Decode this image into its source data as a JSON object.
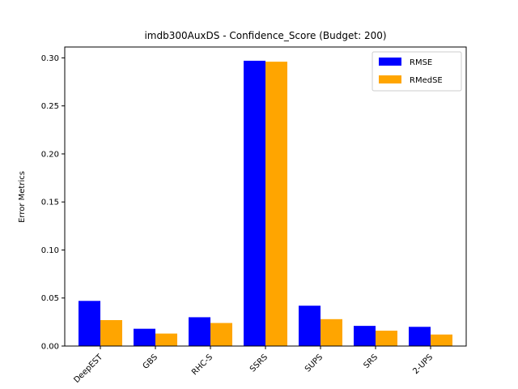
{
  "chart_data": {
    "type": "bar",
    "title": "imdb300AuxDS - Confidence_Score (Budget: 200)",
    "xlabel": "",
    "ylabel": "Error Metrics",
    "categories": [
      "DeepEST",
      "GBS",
      "RHC-S",
      "SSRS",
      "SUPS",
      "SRS",
      "2-UPS"
    ],
    "series": [
      {
        "name": "RMSE",
        "color": "#0000ff",
        "values": [
          0.047,
          0.018,
          0.03,
          0.297,
          0.042,
          0.021,
          0.02
        ]
      },
      {
        "name": "RMedSE",
        "color": "#ffa500",
        "values": [
          0.027,
          0.013,
          0.024,
          0.296,
          0.028,
          0.016,
          0.012
        ]
      }
    ],
    "ylim": [
      0,
      0.3113
    ],
    "yticks": [
      "0.00",
      "0.05",
      "0.10",
      "0.15",
      "0.20",
      "0.25",
      "0.30"
    ],
    "ytick_values": [
      0,
      0.05,
      0.1,
      0.15,
      0.2,
      0.25,
      0.3
    ],
    "grid": false,
    "legend_position": "top-right"
  }
}
